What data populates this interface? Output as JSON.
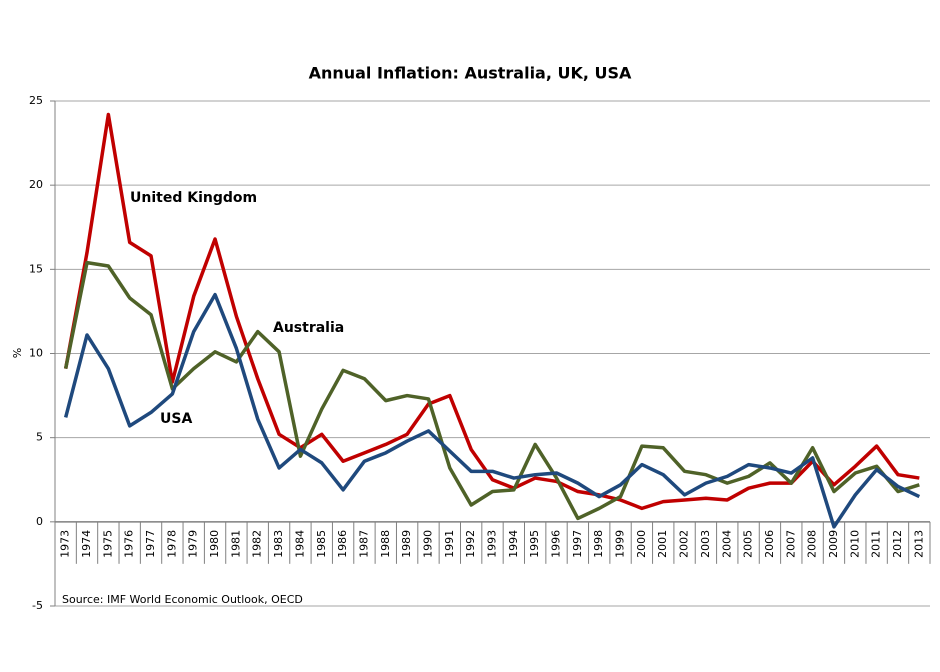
{
  "chart_data": {
    "type": "line",
    "title": "Annual Inflation: Australia, UK, USA",
    "y_label": "%",
    "source": "Source: IMF World Economic Outlook, OECD",
    "categories": [
      "1973",
      "1974",
      "1975",
      "1976",
      "1977",
      "1978",
      "1979",
      "1980",
      "1981",
      "1982",
      "1983",
      "1984",
      "1985",
      "1986",
      "1987",
      "1988",
      "1989",
      "1990",
      "1991",
      "1992",
      "1993",
      "1994",
      "1995",
      "1996",
      "1997",
      "1998",
      "1999",
      "2000",
      "2001",
      "2002",
      "2003",
      "2004",
      "2005",
      "2006",
      "2007",
      "2008",
      "2009",
      "2010",
      "2011",
      "2012",
      "2013"
    ],
    "ylim": [
      -5,
      25
    ],
    "yticks": [
      -5,
      0,
      5,
      10,
      15,
      20,
      25
    ],
    "grid": true,
    "series": [
      {
        "name": "United Kingdom",
        "color": "#c00000",
        "values": [
          9.1,
          16,
          24.2,
          16.6,
          15.8,
          8.3,
          13.4,
          16.8,
          12.2,
          8.5,
          5.2,
          4.4,
          5.2,
          3.6,
          4.1,
          4.6,
          5.2,
          7.0,
          7.5,
          4.3,
          2.5,
          2.0,
          2.6,
          2.4,
          1.8,
          1.6,
          1.3,
          0.8,
          1.2,
          1.3,
          1.4,
          1.3,
          2.0,
          2.3,
          2.3,
          3.6,
          2.2,
          3.3,
          4.5,
          2.8,
          2.6
        ]
      },
      {
        "name": "Australia",
        "color": "#4f6228",
        "values": [
          9.1,
          15.4,
          15.2,
          13.3,
          12.3,
          7.9,
          9.1,
          10.1,
          9.5,
          11.3,
          10.1,
          3.9,
          6.7,
          9.0,
          8.5,
          7.2,
          7.5,
          7.3,
          3.2,
          1.0,
          1.8,
          1.9,
          4.6,
          2.6,
          0.2,
          0.8,
          1.5,
          4.5,
          4.4,
          3.0,
          2.8,
          2.3,
          2.7,
          3.5,
          2.3,
          4.4,
          1.8,
          2.9,
          3.3,
          1.8,
          2.2
        ]
      },
      {
        "name": "USA",
        "color": "#1f497d",
        "values": [
          6.2,
          11.1,
          9.1,
          5.7,
          6.5,
          7.6,
          11.3,
          13.5,
          10.3,
          6.1,
          3.2,
          4.3,
          3.5,
          1.9,
          3.6,
          4.1,
          4.8,
          5.4,
          4.2,
          3.0,
          3.0,
          2.6,
          2.8,
          2.9,
          2.3,
          1.5,
          2.2,
          3.4,
          2.8,
          1.6,
          2.3,
          2.7,
          3.4,
          3.2,
          2.9,
          3.8,
          -0.3,
          1.6,
          3.1,
          2.1,
          1.5
        ]
      }
    ]
  }
}
